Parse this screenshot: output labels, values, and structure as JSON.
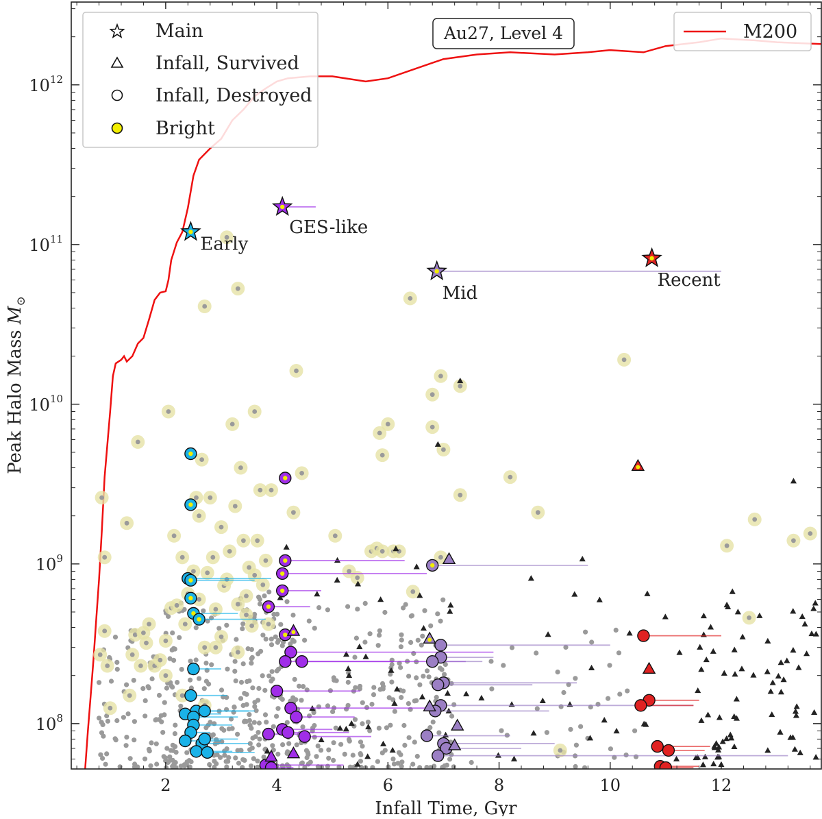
{
  "chart_data": {
    "type": "scatter",
    "title": "Au27, Level 4",
    "xlabel": "Infall Time, Gyr",
    "ylabel": "Peak Halo Mass M⊙",
    "ylabel_main": "Peak Halo Mass ",
    "ylabel_unit": "M",
    "ylabel_sub": "⊙",
    "xlim": [
      0.3,
      13.8
    ],
    "ylim": [
      52000000.0,
      3300000000000.0
    ],
    "yscale": "log",
    "grid": false,
    "x_ticks": [
      2,
      4,
      6,
      8,
      10,
      12
    ],
    "x_tick_labels": [
      "2",
      "4",
      "6",
      "8",
      "10",
      "12"
    ],
    "y_ticks": [
      100000000.0,
      1000000000.0,
      10000000000.0,
      100000000000.0,
      1000000000000.0
    ],
    "y_tick_base": "10",
    "y_tick_exponents": [
      "8",
      "9",
      "10",
      "11",
      "12"
    ],
    "colors": {
      "early": "#1ab2e8",
      "ges": "#a02ee8",
      "mid": "#9b7fc4",
      "recent": "#e02222",
      "m200": "#ee1111",
      "bright_halo": "#e6e2a6",
      "bright_core": "#f2ee00",
      "background_dot": "#9a9a9a",
      "survived_small": "#222222"
    },
    "legend_markers": {
      "placement": "top-left",
      "entries": [
        {
          "label": "Main",
          "marker": "star"
        },
        {
          "label": "Infall, Survived",
          "marker": "triangle"
        },
        {
          "label": "Infall, Destroyed",
          "marker": "circle"
        },
        {
          "label": "Bright",
          "marker": "bright-circle"
        }
      ]
    },
    "legend_line": {
      "placement": "top-right",
      "label": "M200"
    },
    "m200_curve": {
      "name": "M200",
      "x": [
        0.55,
        0.6,
        0.65,
        0.7,
        0.75,
        0.8,
        0.85,
        0.9,
        1.0,
        1.05,
        1.1,
        1.2,
        1.25,
        1.3,
        1.4,
        1.5,
        1.6,
        1.7,
        1.8,
        1.9,
        2.0,
        2.05,
        2.1,
        2.2,
        2.3,
        2.4,
        2.5,
        2.6,
        2.8,
        3.0,
        3.2,
        3.4,
        3.6,
        3.8,
        4.0,
        4.2,
        4.6,
        5.0,
        5.6,
        6.0,
        6.6,
        7.0,
        7.6,
        8.2,
        9.0,
        9.6,
        10.0,
        10.6,
        11.0,
        11.6,
        12.0,
        12.6,
        13.0,
        13.8
      ],
      "y": [
        52000000.0,
        90000000.0,
        150000000.0,
        250000000.0,
        450000000.0,
        800000000.0,
        1600000000.0,
        3500000000.0,
        9000000000.0,
        15000000000.0,
        18000000000.0,
        19000000000.0,
        20000000000.0,
        18500000000.0,
        20000000000.0,
        24000000000.0,
        26000000000.0,
        34000000000.0,
        45000000000.0,
        50000000000.0,
        51000000000.0,
        60000000000.0,
        80000000000.0,
        103000000000.0,
        120000000000.0,
        170000000000.0,
        270000000000.0,
        340000000000.0,
        400000000000.0,
        460000000000.0,
        600000000000.0,
        700000000000.0,
        850000000000.0,
        950000000000.0,
        1050000000000.0,
        1100000000000.0,
        1130000000000.0,
        1130000000000.0,
        1050000000000.0,
        1100000000000.0,
        1300000000000.0,
        1450000000000.0,
        1550000000000.0,
        1600000000000.0,
        1550000000000.0,
        1600000000000.0,
        1650000000000.0,
        1600000000000.0,
        1750000000000.0,
        1850000000000.0,
        1950000000000.0,
        1900000000000.0,
        1850000000000.0,
        1800000000000.0
      ]
    },
    "main_progenitors": [
      {
        "label": "Early",
        "x": 2.45,
        "y": 120000000000.0,
        "x_end": 2.45,
        "group": "early"
      },
      {
        "label": "GES-like",
        "x": 4.1,
        "y": 172000000000.0,
        "x_end": 4.7,
        "group": "ges"
      },
      {
        "label": "Mid",
        "x": 6.88,
        "y": 68000000000.0,
        "x_end": 12.0,
        "group": "mid"
      },
      {
        "label": "Recent",
        "x": 10.75,
        "y": 82000000000.0,
        "x_end": 10.75,
        "group": "recent"
      }
    ],
    "bright_background": [
      {
        "x": 0.85,
        "y": 2600000000.0
      },
      {
        "x": 0.9,
        "y": 1100000000.0
      },
      {
        "x": 0.95,
        "y": 230000000.0
      },
      {
        "x": 0.82,
        "y": 270000000.0
      },
      {
        "x": 0.9,
        "y": 380000000.0
      },
      {
        "x": 1.0,
        "y": 125000000.0
      },
      {
        "x": 1.3,
        "y": 1800000000.0
      },
      {
        "x": 1.4,
        "y": 270000000.0
      },
      {
        "x": 1.45,
        "y": 360000000.0
      },
      {
        "x": 1.5,
        "y": 5800000000.0
      },
      {
        "x": 1.6,
        "y": 370000000.0
      },
      {
        "x": 1.7,
        "y": 420000000.0
      },
      {
        "x": 1.8,
        "y": 230000000.0
      },
      {
        "x": 1.55,
        "y": 230000000.0
      },
      {
        "x": 1.35,
        "y": 150000000.0
      },
      {
        "x": 1.65,
        "y": 320000000.0
      },
      {
        "x": 1.9,
        "y": 250000000.0
      },
      {
        "x": 2.0,
        "y": 330000000.0
      },
      {
        "x": 2.05,
        "y": 9000000000.0
      },
      {
        "x": 2.1,
        "y": 530000000.0
      },
      {
        "x": 2.15,
        "y": 1500000000.0
      },
      {
        "x": 2.3,
        "y": 1100000000.0
      },
      {
        "x": 2.35,
        "y": 420000000.0
      },
      {
        "x": 2.4,
        "y": 650000000.0
      },
      {
        "x": 2.55,
        "y": 2600000000.0
      },
      {
        "x": 2.6,
        "y": 2000000000.0
      },
      {
        "x": 2.65,
        "y": 4500000000.0
      },
      {
        "x": 2.7,
        "y": 41000000000.0
      },
      {
        "x": 2.75,
        "y": 880000000.0
      },
      {
        "x": 2.8,
        "y": 2600000000.0
      },
      {
        "x": 2.85,
        "y": 1100000000.0
      },
      {
        "x": 2.9,
        "y": 520000000.0
      },
      {
        "x": 3.0,
        "y": 1700000000.0
      },
      {
        "x": 3.05,
        "y": 730000000.0
      },
      {
        "x": 3.1,
        "y": 111000000000.0
      },
      {
        "x": 3.15,
        "y": 1200000000.0
      },
      {
        "x": 3.2,
        "y": 7500000000.0
      },
      {
        "x": 3.25,
        "y": 2300000000.0
      },
      {
        "x": 3.3,
        "y": 53000000000.0
      },
      {
        "x": 3.35,
        "y": 4000000000.0
      },
      {
        "x": 3.4,
        "y": 1400000000.0
      },
      {
        "x": 3.5,
        "y": 950000000.0
      },
      {
        "x": 3.6,
        "y": 9000000000.0
      },
      {
        "x": 3.65,
        "y": 1400000000.0
      },
      {
        "x": 3.7,
        "y": 2900000000.0
      },
      {
        "x": 3.75,
        "y": 740000000.0
      },
      {
        "x": 3.8,
        "y": 1050000000.0
      },
      {
        "x": 3.85,
        "y": 420000000.0
      },
      {
        "x": 3.9,
        "y": 2900000000.0
      },
      {
        "x": 3.55,
        "y": 410000000.0
      },
      {
        "x": 3.45,
        "y": 630000000.0
      },
      {
        "x": 2.2,
        "y": 550000000.0
      },
      {
        "x": 2.0,
        "y": 200000000.0
      },
      {
        "x": 2.3,
        "y": 150000000.0
      },
      {
        "x": 2.7,
        "y": 130000000.0
      },
      {
        "x": 3.0,
        "y": 350000000.0
      },
      {
        "x": 2.5,
        "y": 900000000.0
      },
      {
        "x": 2.9,
        "y": 300000000.0
      },
      {
        "x": 3.3,
        "y": 280000000.0
      },
      {
        "x": 3.1,
        "y": 800000000.0
      },
      {
        "x": 3.6,
        "y": 850000000.0
      },
      {
        "x": 3.3,
        "y": 560000000.0
      },
      {
        "x": 2.6,
        "y": 600000000.0
      },
      {
        "x": 2.7,
        "y": 300000000.0
      },
      {
        "x": 3.45,
        "y": 480000000.0
      },
      {
        "x": 4.35,
        "y": 16200000000.0
      },
      {
        "x": 4.45,
        "y": 3700000000.0
      },
      {
        "x": 4.3,
        "y": 2100000000.0
      },
      {
        "x": 5.05,
        "y": 1500000000.0
      },
      {
        "x": 5.3,
        "y": 900000000.0
      },
      {
        "x": 5.45,
        "y": 820000000.0
      },
      {
        "x": 5.7,
        "y": 1200000000.0
      },
      {
        "x": 5.8,
        "y": 1250000000.0
      },
      {
        "x": 5.85,
        "y": 6600000000.0
      },
      {
        "x": 5.9,
        "y": 4800000000.0
      },
      {
        "x": 5.9,
        "y": 1200000000.0
      },
      {
        "x": 6.0,
        "y": 7500000000.0
      },
      {
        "x": 6.1,
        "y": 1200000000.0
      },
      {
        "x": 6.2,
        "y": 1200000000.0
      },
      {
        "x": 6.4,
        "y": 46000000000.0
      },
      {
        "x": 6.45,
        "y": 670000000.0
      },
      {
        "x": 6.8,
        "y": 11500000000.0
      },
      {
        "x": 6.8,
        "y": 7200000000.0
      },
      {
        "x": 6.95,
        "y": 15000000000.0
      },
      {
        "x": 7.0,
        "y": 5200000000.0
      },
      {
        "x": 7.3,
        "y": 13000000000.0
      },
      {
        "x": 7.3,
        "y": 2700000000.0
      },
      {
        "x": 6.95,
        "y": 1100000000.0
      },
      {
        "x": 8.2,
        "y": 3500000000.0
      },
      {
        "x": 8.7,
        "y": 2100000000.0
      },
      {
        "x": 9.1,
        "y": 68000000.0
      },
      {
        "x": 10.25,
        "y": 19000000000.0
      },
      {
        "x": 12.1,
        "y": 1300000000.0
      },
      {
        "x": 12.5,
        "y": 460000000.0
      },
      {
        "x": 12.6,
        "y": 1900000000.0
      },
      {
        "x": 13.3,
        "y": 1400000000.0
      },
      {
        "x": 13.6,
        "y": 1550000000.0
      }
    ],
    "early_destroyed": [
      {
        "x": 2.45,
        "y": 4900000000.0,
        "bright": true,
        "x_end": 2.45
      },
      {
        "x": 2.45,
        "y": 2350000000.0,
        "bright": true,
        "x_end": 2.45
      },
      {
        "x": 2.4,
        "y": 810000000.0,
        "bright": true,
        "x_end": 3.9
      },
      {
        "x": 2.45,
        "y": 790000000.0,
        "bright": true,
        "x_end": 3.6
      },
      {
        "x": 2.45,
        "y": 610000000.0,
        "bright": true,
        "x_end": 2.45
      },
      {
        "x": 2.5,
        "y": 490000000.0,
        "bright": true,
        "x_end": 3.3
      },
      {
        "x": 2.6,
        "y": 450000000.0,
        "bright": true,
        "x_end": 3.8
      },
      {
        "x": 2.5,
        "y": 220000000.0,
        "bright": false,
        "x_end": 3.0
      },
      {
        "x": 2.45,
        "y": 150000000.0,
        "bright": false,
        "x_end": 3.1
      },
      {
        "x": 2.55,
        "y": 120000000.0,
        "bright": false,
        "x_end": 3.6
      },
      {
        "x": 2.35,
        "y": 115000000.0,
        "bright": false,
        "x_end": 3.0
      },
      {
        "x": 2.5,
        "y": 110000000.0,
        "bright": false,
        "x_end": 3.3
      },
      {
        "x": 2.7,
        "y": 120000000.0,
        "bright": false,
        "x_end": 3.5
      },
      {
        "x": 2.5,
        "y": 98000000.0,
        "bright": false,
        "x_end": 3.2
      },
      {
        "x": 2.45,
        "y": 88000000.0,
        "bright": false,
        "x_end": 2.8
      },
      {
        "x": 2.35,
        "y": 78000000.0,
        "bright": false,
        "x_end": 3.0
      },
      {
        "x": 2.65,
        "y": 75000000.0,
        "bright": false,
        "x_end": 3.5
      },
      {
        "x": 2.7,
        "y": 80000000.0,
        "bright": false,
        "x_end": 3.3
      },
      {
        "x": 2.55,
        "y": 67000000.0,
        "bright": false,
        "x_end": 3.2
      },
      {
        "x": 2.75,
        "y": 66000000.0,
        "bright": false,
        "x_end": 3.6
      }
    ],
    "ges_destroyed": [
      {
        "x": 4.15,
        "y": 3450000000.0,
        "bright": true,
        "x_end": 4.15
      },
      {
        "x": 4.15,
        "y": 1050000000.0,
        "bright": true,
        "x_end": 6.3
      },
      {
        "x": 4.1,
        "y": 870000000.0,
        "bright": true,
        "x_end": 6.7
      },
      {
        "x": 4.1,
        "y": 680000000.0,
        "bright": true,
        "x_end": 4.8
      },
      {
        "x": 3.85,
        "y": 540000000.0,
        "bright": true,
        "x_end": 4.6
      },
      {
        "x": 4.15,
        "y": 360000000.0,
        "bright": true,
        "x_end": 4.15
      },
      {
        "x": 4.25,
        "y": 280000000.0,
        "bright": false,
        "x_end": 7.9
      },
      {
        "x": 4.15,
        "y": 245000000.0,
        "bright": false,
        "x_end": 7.4
      },
      {
        "x": 4.45,
        "y": 245000000.0,
        "bright": false,
        "x_end": 6.1
      },
      {
        "x": 4.0,
        "y": 160000000.0,
        "bright": false,
        "x_end": 5.5
      },
      {
        "x": 4.25,
        "y": 125000000.0,
        "bright": false,
        "x_end": 6.7
      },
      {
        "x": 4.35,
        "y": 110000000.0,
        "bright": false,
        "x_end": 5.4
      },
      {
        "x": 4.1,
        "y": 92000000.0,
        "bright": false,
        "x_end": 5.0
      },
      {
        "x": 3.85,
        "y": 86000000.0,
        "bright": false,
        "x_end": 4.6
      },
      {
        "x": 4.2,
        "y": 88000000.0,
        "bright": false,
        "x_end": 5.3
      },
      {
        "x": 4.5,
        "y": 83000000.0,
        "bright": false,
        "x_end": 5.7
      },
      {
        "x": 3.8,
        "y": 55000000.0,
        "bright": false,
        "x_end": 5.2
      },
      {
        "x": 3.9,
        "y": 53000000.0,
        "bright": false,
        "x_end": 4.3
      }
    ],
    "ges_survived": [
      {
        "x": 4.3,
        "y": 380000000.0,
        "bright": true
      },
      {
        "x": 4.3,
        "y": 65000000.0,
        "bright": false
      },
      {
        "x": 3.9,
        "y": 62000000.0,
        "bright": false
      }
    ],
    "mid_destroyed": [
      {
        "x": 6.8,
        "y": 980000000.0,
        "bright": true,
        "x_end": 9.6
      },
      {
        "x": 6.95,
        "y": 310000000.0,
        "bright": false,
        "x_end": 10.0
      },
      {
        "x": 6.95,
        "y": 260000000.0,
        "bright": false,
        "x_end": 7.9
      },
      {
        "x": 6.8,
        "y": 245000000.0,
        "bright": false,
        "x_end": 7.7
      },
      {
        "x": 7.0,
        "y": 180000000.0,
        "bright": false,
        "x_end": 9.4
      },
      {
        "x": 6.9,
        "y": 175000000.0,
        "bright": false,
        "x_end": 8.6
      },
      {
        "x": 6.95,
        "y": 130000000.0,
        "bright": false,
        "x_end": 11.5
      },
      {
        "x": 6.85,
        "y": 120000000.0,
        "bright": false,
        "x_end": 8.9
      },
      {
        "x": 6.7,
        "y": 84000000.0,
        "bright": false,
        "x_end": 8.2
      },
      {
        "x": 7.0,
        "y": 75000000.0,
        "bright": false,
        "x_end": 9.0
      },
      {
        "x": 7.05,
        "y": 70000000.0,
        "bright": false,
        "x_end": 8.4
      },
      {
        "x": 6.9,
        "y": 63000000.0,
        "bright": false,
        "x_end": 13.2
      }
    ],
    "mid_survived": [
      {
        "x": 6.75,
        "y": 340000000.0,
        "bright": true
      },
      {
        "x": 7.1,
        "y": 1070000000.0,
        "bright": false
      },
      {
        "x": 6.75,
        "y": 128000000.0,
        "bright": false
      },
      {
        "x": 7.25,
        "y": 97000000.0,
        "bright": false
      },
      {
        "x": 7.2,
        "y": 73000000.0,
        "bright": false
      }
    ],
    "recent_destroyed": [
      {
        "x": 10.6,
        "y": 355000000.0,
        "bright": false,
        "x_end": 12.0
      },
      {
        "x": 10.7,
        "y": 140000000.0,
        "bright": false,
        "x_end": 11.6
      },
      {
        "x": 10.55,
        "y": 130000000.0,
        "bright": false,
        "x_end": 11.5
      },
      {
        "x": 10.85,
        "y": 72000000.0,
        "bright": false,
        "x_end": 11.8
      },
      {
        "x": 11.05,
        "y": 68000000.0,
        "bright": false,
        "x_end": 11.7
      },
      {
        "x": 10.9,
        "y": 54000000.0,
        "bright": false,
        "x_end": 11.6
      },
      {
        "x": 11.0,
        "y": 53000000.0,
        "bright": false,
        "x_end": 11.5
      }
    ],
    "recent_survived": [
      {
        "x": 10.5,
        "y": 4100000000.0,
        "bright": true
      },
      {
        "x": 10.7,
        "y": 220000000.0,
        "bright": false
      }
    ]
  }
}
